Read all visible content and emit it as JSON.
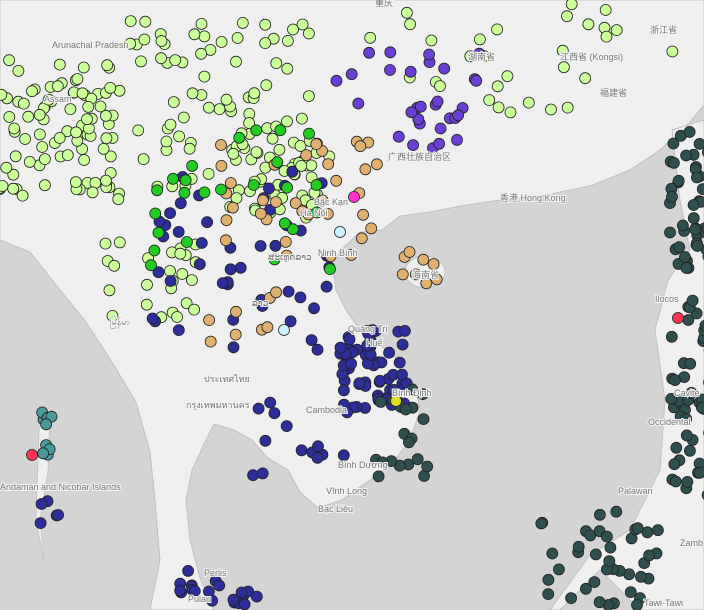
{
  "labels": [
    "Arunachal Pradesh",
    "Assam",
    "重庆",
    "湖南省",
    "浙江省",
    "江西省 (Kongsi)",
    "福建省",
    "广西壮族自治区",
    "香港 Hong Kong",
    "Bắc Kạn",
    "Hà Nội",
    "Ninh Bình",
    "海南省",
    "ສະເທດລາວ",
    "ລາວ",
    "မြန်မာ",
    "ประเทศไทย",
    "กรุงเทพมหานคร",
    "Cambodia",
    "Quảng Trị",
    "Huế",
    "Bình Định",
    "Bình Dương",
    "Vĩnh Long",
    "Bạc Liêu",
    "Andaman and Nicobar Islands",
    "Ilocos",
    "Occidental",
    "Cavite",
    "Palawan",
    "Zamb",
    "Perlis",
    "Pulau",
    "Tawi-Tawi"
  ]
}
